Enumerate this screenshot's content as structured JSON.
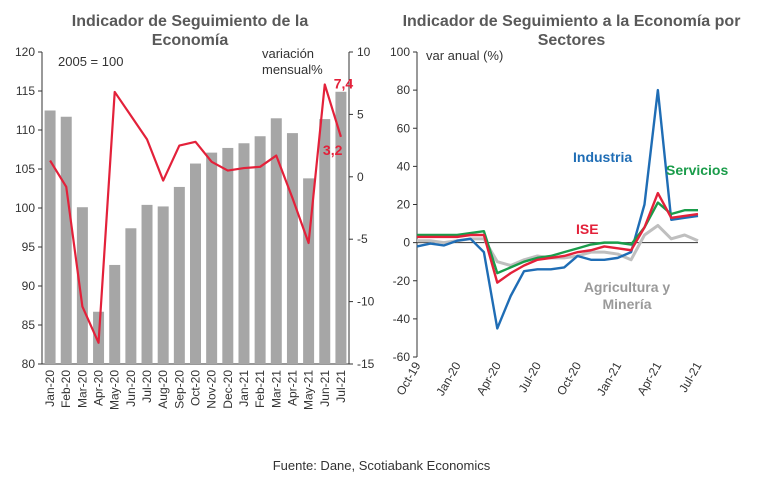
{
  "chart_data": [
    {
      "type": "bar",
      "title": "Indicador de Seguimiento de la Economía",
      "categories": [
        "Jan-20",
        "Feb-20",
        "Mar-20",
        "Apr-20",
        "May-20",
        "Jun-20",
        "Jul-20",
        "Aug-20",
        "Sep-20",
        "Oct-20",
        "Nov-20",
        "Dec-20",
        "Jan-21",
        "Feb-21",
        "Mar-21",
        "Apr-21",
        "May-21",
        "Jun-21",
        "Jul-21"
      ],
      "ylim": [
        80,
        120
      ],
      "yticks": [
        80,
        85,
        90,
        95,
        100,
        105,
        110,
        115,
        120
      ],
      "y2lim": [
        -15,
        10
      ],
      "y2ticks": [
        -15,
        -10,
        -5,
        0,
        5,
        10
      ],
      "base_note": "2005 = 100",
      "y2label": [
        "variación",
        "mensual%"
      ],
      "series": [
        {
          "name": "",
          "kind": "bar",
          "axis": "left",
          "color": "#a6a6a6",
          "values": [
            112.5,
            111.7,
            100.1,
            86.7,
            92.7,
            97.4,
            100.4,
            100.2,
            102.7,
            105.7,
            107.1,
            107.7,
            108.3,
            109.2,
            111.5,
            109.6,
            103.8,
            111.4,
            114.9
          ]
        },
        {
          "name": "",
          "kind": "line",
          "axis": "right",
          "color": "#e3213a",
          "values": [
            1.3,
            -0.8,
            -10.4,
            -13.3,
            6.8,
            4.9,
            3.0,
            -0.3,
            2.5,
            2.8,
            1.2,
            0.5,
            0.7,
            0.8,
            1.7,
            -1.7,
            -5.3,
            7.4,
            3.2
          ]
        }
      ],
      "data_labels": [
        "7,4",
        "3,2"
      ]
    },
    {
      "type": "line",
      "title": "Indicador de Seguimiento a la Economía por Sectores",
      "ylabel": "var anual (%)",
      "ylim": [
        -60,
        100
      ],
      "yticks": [
        -60,
        -40,
        -20,
        0,
        20,
        40,
        60,
        80,
        100
      ],
      "x": [
        "Oct-19",
        "Nov-19",
        "Dec-19",
        "Jan-20",
        "Feb-20",
        "Mar-20",
        "Apr-20",
        "May-20",
        "Jun-20",
        "Jul-20",
        "Aug-20",
        "Sep-20",
        "Oct-20",
        "Nov-20",
        "Dec-20",
        "Jan-21",
        "Feb-21",
        "Mar-21",
        "Apr-21",
        "May-21",
        "Jun-21",
        "Jul-21"
      ],
      "xtick_labels": [
        "Oct-19",
        "Jan-20",
        "Apr-20",
        "Jul-20",
        "Oct-20",
        "Jan-21",
        "Apr-21",
        "Jul-21"
      ],
      "series": [
        {
          "name": "Industria",
          "color": "#1f6db5",
          "values": [
            -2,
            -0.5,
            -1.5,
            1,
            2,
            -5,
            -45,
            -28,
            -15,
            -14,
            -14,
            -13,
            -7,
            -9,
            -9,
            -8,
            -5,
            20,
            80,
            12,
            13,
            14
          ]
        },
        {
          "name": "Servicios",
          "color": "#1a9c4a",
          "values": [
            4,
            4,
            4,
            4,
            5,
            6,
            -16,
            -13,
            -10,
            -8,
            -7,
            -5,
            -3,
            -1,
            0,
            0,
            -1,
            8,
            21,
            15,
            17,
            17
          ]
        },
        {
          "name": "ISE",
          "color": "#e3213a",
          "values": [
            3,
            3,
            3,
            3,
            4,
            4,
            -21,
            -16,
            -12,
            -9,
            -8,
            -7,
            -5,
            -4,
            -2,
            -3,
            -4,
            8,
            26,
            13,
            14,
            15
          ]
        },
        {
          "name": "Agricultura y Minería",
          "color": "#bfbfbf",
          "values": [
            1,
            1,
            0,
            1,
            2,
            2,
            -10,
            -12,
            -9,
            -7,
            -8,
            -8,
            -7,
            -5,
            -5,
            -6,
            -9,
            4,
            9,
            2,
            4,
            1
          ]
        }
      ],
      "label_lines": {
        "agricultura": [
          "Agricultura y",
          "Minería"
        ]
      }
    }
  ],
  "source": "Fuente: Dane, Scotiabank Economics"
}
